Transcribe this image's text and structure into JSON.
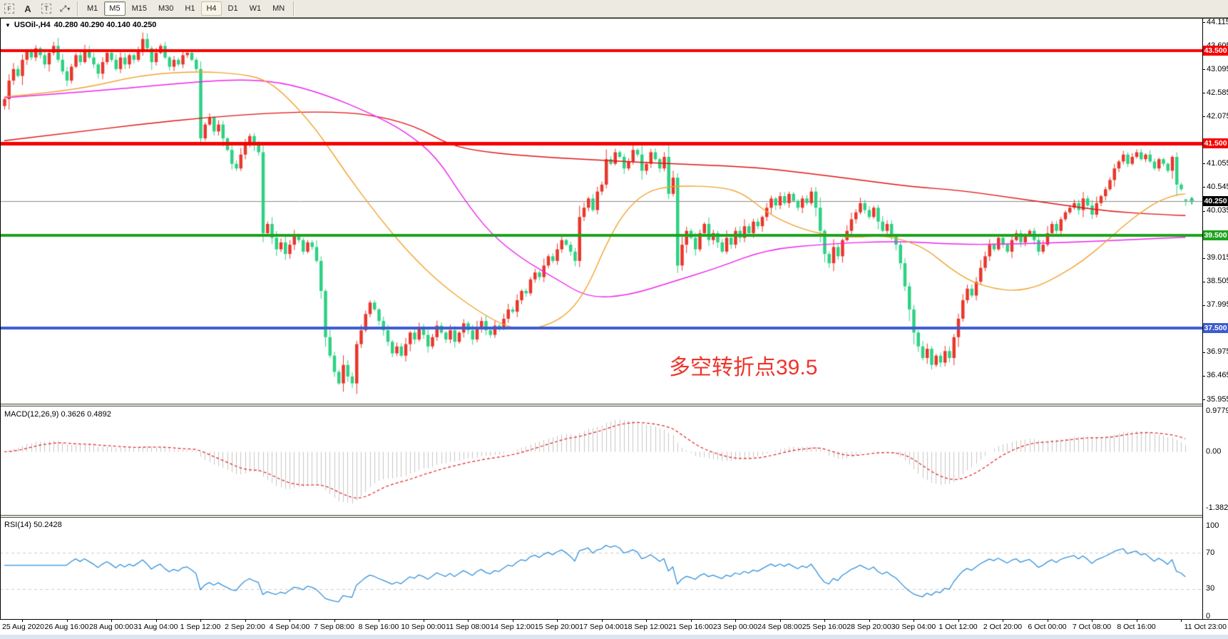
{
  "toolbar": {
    "icons": [
      {
        "name": "frame-tool-icon",
        "label": "F"
      },
      {
        "name": "text-label-icon",
        "label": "A"
      },
      {
        "name": "text-box-icon",
        "label": "T"
      },
      {
        "name": "draw-arrows-icon",
        "label": "⤢"
      }
    ],
    "caret_glyph": "▾",
    "timeframes": [
      {
        "label": "M1",
        "state": "normal"
      },
      {
        "label": "M5",
        "state": "pressed"
      },
      {
        "label": "M15",
        "state": "normal"
      },
      {
        "label": "M30",
        "state": "normal"
      },
      {
        "label": "H1",
        "state": "normal"
      },
      {
        "label": "H4",
        "state": "active"
      },
      {
        "label": "D1",
        "state": "normal"
      },
      {
        "label": "W1",
        "state": "normal"
      },
      {
        "label": "MN",
        "state": "normal"
      }
    ]
  },
  "chart": {
    "caret_glyph": "▼",
    "title": "USOil-,H4",
    "ohlc_label": "40.280 40.290 40.140 40.250",
    "annotation": {
      "text": "多空转折点39.5",
      "color": "#ee342b"
    }
  },
  "price_axis": {
    "ticks": [
      "44.115",
      "43.605",
      "43.095",
      "42.585",
      "42.075",
      "41.055",
      "40.545",
      "40.035",
      "39.015",
      "38.505",
      "37.995",
      "36.975",
      "36.465",
      "35.955"
    ]
  },
  "time_axis": {
    "labels": [
      "25 Aug 2020",
      "26 Aug 16:00",
      "28 Aug 00:00",
      "31 Aug 04:00",
      "1 Sep 12:00",
      "2 Sep 20:00",
      "4 Sep 04:00",
      "7 Sep 08:00",
      "8 Sep 16:00",
      "10 Sep 00:00",
      "11 Sep 08:00",
      "14 Sep 12:00",
      "15 Sep 20:00",
      "17 Sep 04:00",
      "18 Sep 12:00",
      "21 Sep 16:00",
      "23 Sep 00:00",
      "24 Sep 08:00",
      "25 Sep 16:00",
      "28 Sep 20:00",
      "30 Sep 04:00",
      "1 Oct 12:00",
      "2 Oct 20:00",
      "6 Oct 00:00",
      "7 Oct 08:00",
      "8 Oct 16:00",
      "11 Oct 23:00"
    ]
  },
  "indicators": {
    "macd": {
      "label": "MACD(12,26,9) 0.3626 0.4892",
      "fast": 12,
      "slow": 26,
      "signal": 9,
      "last_value": 0.3626,
      "last_signal": 0.4892,
      "axis": [
        {
          "text": "0.9779",
          "value": 0.9779
        },
        {
          "text": "0.00",
          "value": 0
        },
        {
          "text": "-1.382",
          "value": -1.382
        }
      ]
    },
    "rsi": {
      "label": "RSI(14) 50.2428",
      "period": 14,
      "last_value": 50.2428,
      "levels": [
        30,
        70
      ],
      "axis": [
        {
          "text": "100",
          "value": 100
        },
        {
          "text": "70",
          "value": 70
        },
        {
          "text": "30",
          "value": 30
        },
        {
          "text": "0",
          "value": 0
        }
      ]
    }
  },
  "colors": {
    "bull": "#e8372c",
    "bear": "#2ed183",
    "ma_slow": "#e01212",
    "ma_mid": "#ee22ee",
    "ma_fast": "#f0a431",
    "current_line": "#8a8a8a",
    "current_badge": "#000000",
    "macd_hist": "#c6c6c6",
    "macd_signal": "#e02020",
    "rsi_line": "#3191dd",
    "rsi_levels": "#cccccc",
    "marker_arrow": "#2bbf7e"
  },
  "chart_data": {
    "type": "candlestick+indicators",
    "symbol": "USOil",
    "timeframe": "H4",
    "visible_range": {
      "start": "25 Aug 2020 00:00",
      "end": "11 Oct 2020 23:00"
    },
    "price_range": [
      35.955,
      44.115
    ],
    "first_open": 42.3,
    "closes": [
      42.45,
      42.85,
      43.1,
      42.95,
      43.3,
      43.5,
      43.35,
      43.55,
      43.4,
      43.2,
      43.45,
      43.6,
      43.3,
      43.05,
      42.85,
      43.15,
      43.4,
      43.25,
      43.5,
      43.35,
      43.2,
      43.0,
      43.25,
      43.45,
      43.3,
      43.1,
      43.35,
      43.2,
      43.4,
      43.3,
      43.5,
      43.75,
      43.55,
      43.25,
      43.45,
      43.6,
      43.35,
      43.15,
      43.3,
      43.2,
      43.4,
      43.45,
      43.3,
      43.1,
      41.6,
      41.9,
      42.05,
      41.75,
      41.9,
      41.6,
      41.35,
      41.05,
      40.95,
      41.25,
      41.5,
      41.65,
      41.45,
      41.3,
      39.55,
      39.75,
      39.45,
      39.2,
      39.35,
      39.1,
      39.3,
      39.5,
      39.4,
      39.15,
      39.35,
      39.25,
      38.95,
      38.3,
      37.3,
      36.9,
      36.55,
      36.3,
      36.7,
      36.45,
      36.3,
      37.15,
      37.45,
      37.8,
      38.05,
      37.9,
      37.65,
      37.45,
      37.2,
      36.95,
      37.1,
      36.9,
      37.15,
      37.4,
      37.25,
      37.5,
      37.35,
      37.1,
      37.3,
      37.55,
      37.4,
      37.25,
      37.45,
      37.2,
      37.4,
      37.6,
      37.45,
      37.25,
      37.5,
      37.65,
      37.45,
      37.35,
      37.55,
      37.5,
      37.7,
      37.9,
      37.85,
      38.1,
      38.3,
      38.25,
      38.55,
      38.7,
      38.6,
      38.85,
      39.05,
      38.95,
      39.2,
      39.4,
      39.3,
      39.15,
      38.95,
      39.9,
      40.1,
      40.3,
      40.05,
      40.45,
      40.6,
      41.15,
      41.05,
      41.3,
      41.2,
      40.95,
      41.1,
      41.35,
      41.25,
      40.9,
      41.05,
      41.3,
      41.15,
      40.95,
      41.2,
      40.4,
      40.75,
      38.85,
      39.3,
      39.6,
      39.45,
      39.2,
      39.55,
      39.75,
      39.4,
      39.55,
      39.35,
      39.15,
      39.45,
      39.3,
      39.6,
      39.45,
      39.7,
      39.55,
      39.8,
      39.7,
      39.9,
      40.1,
      40.3,
      40.15,
      40.35,
      40.2,
      40.4,
      40.25,
      40.1,
      40.3,
      40.2,
      40.45,
      40.1,
      39.6,
      39.1,
      38.9,
      39.25,
      39.05,
      39.4,
      39.6,
      39.85,
      40.0,
      40.2,
      40.05,
      39.9,
      40.1,
      39.8,
      39.6,
      39.75,
      39.5,
      39.3,
      38.9,
      38.4,
      37.9,
      37.4,
      37.1,
      36.85,
      37.05,
      36.7,
      36.9,
      36.75,
      37.0,
      36.85,
      37.3,
      37.7,
      38.1,
      38.35,
      38.2,
      38.5,
      38.8,
      39.05,
      39.3,
      39.2,
      39.45,
      39.3,
      39.15,
      39.4,
      39.55,
      39.35,
      39.5,
      39.6,
      39.4,
      39.15,
      39.3,
      39.55,
      39.75,
      39.6,
      39.85,
      40.0,
      40.1,
      40.2,
      40.05,
      40.3,
      40.15,
      39.95,
      40.2,
      40.35,
      40.5,
      40.7,
      40.95,
      41.1,
      41.25,
      41.05,
      41.2,
      41.3,
      41.15,
      41.25,
      41.1,
      40.95,
      41.15,
      41.05,
      40.9,
      41.2,
      40.6,
      40.5,
      40.25
    ],
    "last_ohlc": {
      "open": 40.28,
      "high": 40.29,
      "low": 40.14,
      "close": 40.25
    },
    "horizontal_lines": [
      {
        "price": 43.5,
        "label": "43.500",
        "color": "#f40000",
        "width": 4
      },
      {
        "price": 41.5,
        "label": "41.500",
        "color": "#f40000",
        "width": 5
      },
      {
        "price": 39.5,
        "label": "39.500",
        "color": "#1ea31e",
        "width": 4
      },
      {
        "price": 37.5,
        "label": "37.500",
        "color": "#3c5bd0",
        "width": 4
      }
    ],
    "current_price": {
      "price": 40.25,
      "label": "40.250"
    },
    "moving_averages": [
      {
        "name": "ma-slow-red",
        "color": "#e01212",
        "points": [
          [
            0,
            41.55
          ],
          [
            15,
            41.72
          ],
          [
            30,
            41.9
          ],
          [
            45,
            42.05
          ],
          [
            60,
            42.15
          ],
          [
            72,
            42.18
          ],
          [
            82,
            42.12
          ],
          [
            92,
            41.88
          ],
          [
            100,
            41.45
          ],
          [
            108,
            41.3
          ],
          [
            120,
            41.2
          ],
          [
            135,
            41.12
          ],
          [
            150,
            41.05
          ],
          [
            168,
            40.98
          ],
          [
            180,
            40.85
          ],
          [
            192,
            40.7
          ],
          [
            204,
            40.55
          ],
          [
            214,
            40.48
          ],
          [
            226,
            40.32
          ],
          [
            238,
            40.15
          ],
          [
            248,
            40.02
          ],
          [
            258,
            39.96
          ],
          [
            265,
            39.93
          ]
        ]
      },
      {
        "name": "ma-mid-magenta",
        "color": "#ee22ee",
        "points": [
          [
            0,
            42.48
          ],
          [
            20,
            42.62
          ],
          [
            38,
            42.78
          ],
          [
            52,
            42.88
          ],
          [
            62,
            42.82
          ],
          [
            72,
            42.55
          ],
          [
            82,
            42.15
          ],
          [
            90,
            41.75
          ],
          [
            97,
            41.2
          ],
          [
            103,
            40.3
          ],
          [
            109,
            39.55
          ],
          [
            116,
            39.0
          ],
          [
            124,
            38.55
          ],
          [
            131,
            38.15
          ],
          [
            140,
            38.2
          ],
          [
            150,
            38.5
          ],
          [
            160,
            38.8
          ],
          [
            171,
            39.2
          ],
          [
            185,
            39.32
          ],
          [
            200,
            39.38
          ],
          [
            215,
            39.3
          ],
          [
            228,
            39.32
          ],
          [
            242,
            39.36
          ],
          [
            255,
            39.42
          ],
          [
            265,
            39.46
          ]
        ]
      },
      {
        "name": "ma-fast-orange",
        "color": "#f0a431",
        "points": [
          [
            0,
            42.5
          ],
          [
            15,
            42.62
          ],
          [
            31,
            42.98
          ],
          [
            44,
            43.05
          ],
          [
            52,
            43.0
          ],
          [
            58,
            42.9
          ],
          [
            63,
            42.55
          ],
          [
            70,
            41.8
          ],
          [
            77,
            40.8
          ],
          [
            84,
            39.9
          ],
          [
            91,
            39.1
          ],
          [
            98,
            38.45
          ],
          [
            105,
            37.95
          ],
          [
            111,
            37.6
          ],
          [
            116,
            37.45
          ],
          [
            122,
            37.55
          ],
          [
            127,
            37.85
          ],
          [
            131,
            38.4
          ],
          [
            135,
            39.3
          ],
          [
            139,
            40.0
          ],
          [
            144,
            40.45
          ],
          [
            150,
            40.58
          ],
          [
            161,
            40.55
          ],
          [
            166,
            40.4
          ],
          [
            171,
            40.0
          ],
          [
            176,
            39.75
          ],
          [
            182,
            39.55
          ],
          [
            190,
            39.45
          ],
          [
            197,
            39.5
          ],
          [
            202,
            39.4
          ],
          [
            207,
            39.2
          ],
          [
            212,
            38.8
          ],
          [
            217,
            38.5
          ],
          [
            222,
            38.35
          ],
          [
            227,
            38.3
          ],
          [
            232,
            38.4
          ],
          [
            237,
            38.65
          ],
          [
            242,
            38.95
          ],
          [
            247,
            39.35
          ],
          [
            251,
            39.7
          ],
          [
            255,
            40.0
          ],
          [
            259,
            40.25
          ],
          [
            263,
            40.38
          ],
          [
            265,
            40.4
          ]
        ]
      }
    ]
  }
}
